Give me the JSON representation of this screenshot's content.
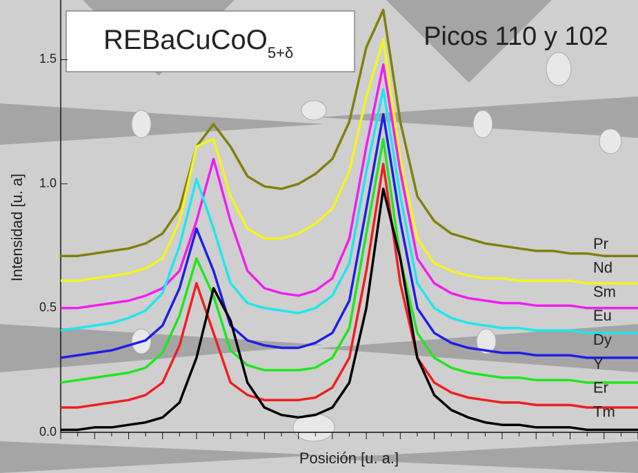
{
  "chart_data": {
    "type": "line",
    "title": {
      "base": "REBaCuCoO",
      "subscript": "5+δ"
    },
    "subtitle": "Picos 110 y 102",
    "x_label": "Posición [u. a.]",
    "y_label": "Intensidad [u. a]",
    "categories": [
      null,
      null,
      null,
      null,
      null,
      null,
      null,
      null,
      null,
      null,
      null,
      null,
      null,
      null,
      null,
      null,
      null,
      null,
      null,
      null,
      null,
      null,
      null,
      null,
      null,
      null,
      null,
      null,
      null,
      null,
      null,
      null,
      null,
      null,
      null
    ],
    "ylim": [
      0,
      1.74
    ],
    "yticks": [
      {
        "value": 0,
        "label": "0.0"
      },
      0.5,
      {
        "value": 1,
        "label": "1.0"
      },
      1.5
    ],
    "series": [
      {
        "name": "Pr",
        "color": "#80800a",
        "values": [
          0.71,
          0.71,
          0.72,
          0.73,
          0.74,
          0.76,
          0.8,
          0.9,
          1.15,
          1.24,
          1.15,
          1.03,
          0.99,
          0.98,
          1.0,
          1.04,
          1.1,
          1.25,
          1.55,
          1.7,
          1.25,
          0.95,
          0.85,
          0.8,
          0.78,
          0.76,
          0.75,
          0.74,
          0.73,
          0.73,
          0.72,
          0.72,
          0.71,
          0.71,
          0.71
        ]
      },
      {
        "name": "Nd",
        "color": "#f5f51e",
        "values": [
          0.61,
          0.61,
          0.62,
          0.63,
          0.64,
          0.66,
          0.7,
          0.85,
          1.15,
          1.18,
          0.95,
          0.82,
          0.78,
          0.78,
          0.8,
          0.84,
          0.9,
          1.05,
          1.35,
          1.58,
          1.1,
          0.78,
          0.68,
          0.65,
          0.63,
          0.62,
          0.62,
          0.61,
          0.61,
          0.61,
          0.61,
          0.6,
          0.6,
          0.6,
          0.6
        ]
      },
      {
        "name": "Sm",
        "color": "#f01ef0",
        "values": [
          0.5,
          0.5,
          0.51,
          0.52,
          0.53,
          0.55,
          0.58,
          0.65,
          0.85,
          1.1,
          0.85,
          0.65,
          0.58,
          0.56,
          0.55,
          0.57,
          0.62,
          0.78,
          1.15,
          1.48,
          1.05,
          0.7,
          0.6,
          0.56,
          0.54,
          0.53,
          0.52,
          0.52,
          0.51,
          0.51,
          0.51,
          0.5,
          0.5,
          0.5,
          0.5
        ]
      },
      {
        "name": "Eu",
        "color": "#1ee6f0",
        "values": [
          0.41,
          0.42,
          0.43,
          0.44,
          0.46,
          0.49,
          0.56,
          0.75,
          1.02,
          0.82,
          0.6,
          0.52,
          0.5,
          0.49,
          0.48,
          0.5,
          0.55,
          0.68,
          1.05,
          1.38,
          0.95,
          0.6,
          0.5,
          0.46,
          0.44,
          0.43,
          0.42,
          0.42,
          0.41,
          0.41,
          0.41,
          0.4,
          0.4,
          0.4,
          0.4
        ]
      },
      {
        "name": "Dy",
        "color": "#1e1ee6",
        "values": [
          0.3,
          0.31,
          0.32,
          0.33,
          0.35,
          0.37,
          0.43,
          0.58,
          0.82,
          0.65,
          0.43,
          0.37,
          0.35,
          0.34,
          0.34,
          0.36,
          0.4,
          0.53,
          0.9,
          1.28,
          0.85,
          0.5,
          0.4,
          0.36,
          0.34,
          0.33,
          0.32,
          0.32,
          0.31,
          0.31,
          0.31,
          0.3,
          0.3,
          0.3,
          0.3
        ]
      },
      {
        "name": "Y",
        "color": "#1ee61e",
        "values": [
          0.2,
          0.21,
          0.22,
          0.23,
          0.24,
          0.26,
          0.32,
          0.47,
          0.7,
          0.55,
          0.33,
          0.27,
          0.25,
          0.25,
          0.25,
          0.26,
          0.3,
          0.42,
          0.8,
          1.18,
          0.7,
          0.4,
          0.3,
          0.26,
          0.24,
          0.23,
          0.22,
          0.22,
          0.21,
          0.21,
          0.21,
          0.2,
          0.2,
          0.2,
          0.2
        ]
      },
      {
        "name": "Er",
        "color": "#f01e1e",
        "values": [
          0.1,
          0.1,
          0.11,
          0.12,
          0.13,
          0.15,
          0.2,
          0.35,
          0.6,
          0.4,
          0.2,
          0.15,
          0.13,
          0.13,
          0.13,
          0.14,
          0.18,
          0.3,
          0.65,
          1.08,
          0.6,
          0.3,
          0.2,
          0.16,
          0.14,
          0.13,
          0.12,
          0.12,
          0.11,
          0.11,
          0.11,
          0.1,
          0.1,
          0.1,
          0.1
        ]
      },
      {
        "name": "Tm",
        "color": "#000000",
        "values": [
          0.01,
          0.01,
          0.02,
          0.02,
          0.03,
          0.04,
          0.06,
          0.12,
          0.3,
          0.58,
          0.45,
          0.2,
          0.1,
          0.07,
          0.06,
          0.07,
          0.1,
          0.2,
          0.5,
          0.98,
          0.7,
          0.3,
          0.15,
          0.09,
          0.06,
          0.04,
          0.03,
          0.03,
          0.02,
          0.02,
          0.02,
          0.01,
          0.01,
          0.01,
          0.01
        ]
      }
    ]
  }
}
